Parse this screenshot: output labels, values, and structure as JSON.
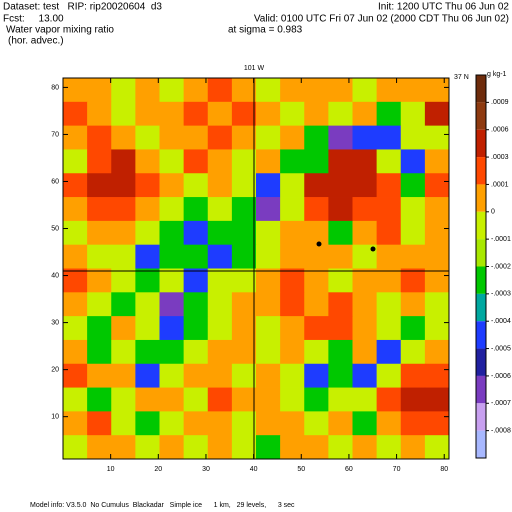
{
  "chart_data": {
    "type": "heatmap",
    "dataset": "Dataset: test   RIP: rip20020604  d3",
    "init": "Init: 1200 UTC Thu 06 Jun 02",
    "fcst": "Fcst:     13.00",
    "valid": "Valid: 0100 UTC Fri 07 Jun 02 (2000 CDT Thu 06 Jun 02)",
    "title": "Water vapor mixing ratio",
    "level": "at sigma = 0.983",
    "subtitle": "(hor. advec.)",
    "x_annotation": "101 W",
    "y_annotation": "37 N",
    "colorbar_unit": "g kg-1",
    "footer": "Model info: V3.5.0  No Cumulus  Blackadar   Simple ice      1 km,   29 levels,      3 sec",
    "xlim": [
      0,
      81
    ],
    "ylim": [
      1,
      82
    ],
    "xticks": [
      10,
      20,
      30,
      40,
      50,
      60,
      70,
      80
    ],
    "yticks": [
      10,
      20,
      30,
      40,
      50,
      60,
      70,
      80
    ],
    "levels": [
      {
        "value": 0.0009,
        "label": ".0009"
      },
      {
        "value": 0.0006,
        "label": ".0006"
      },
      {
        "value": 0.0003,
        "label": ".0003"
      },
      {
        "value": 0.0001,
        "label": ".0001"
      },
      0,
      {
        "value": -0.0001,
        "label": "-.0001"
      },
      {
        "value": -0.0002,
        "label": "-.0002"
      },
      {
        "value": -0.0003,
        "label": "-.0003"
      },
      {
        "value": -0.0004,
        "label": "-.0004"
      },
      {
        "value": -0.0005,
        "label": "-.0005"
      },
      {
        "value": -0.0006,
        "label": "-.0006"
      },
      {
        "value": -0.0007,
        "label": "-.0007"
      },
      {
        "value": -0.0008,
        "label": "-.0008"
      }
    ],
    "colors": [
      "#6e2c0c",
      "#8e3a10",
      "#c02000",
      "#ff4800",
      "#ffa000",
      "#c8f000",
      "#a8e800",
      "#00c800",
      "#00a8a0",
      "#1e3cff",
      "#2020a0",
      "#7a3cc0",
      "#c8a0f0",
      "#a8b8ff"
    ],
    "z": [
      [
        5e-05,
        5e-05,
        -5e-05,
        5e-05,
        -5e-05,
        5e-05,
        0.0002,
        5e-05,
        -5e-05,
        5e-05,
        5e-05,
        5e-05,
        -5e-05,
        5e-05,
        5e-05,
        5e-05
      ],
      [
        0.0002,
        5e-05,
        -5e-05,
        5e-05,
        5e-05,
        0.0002,
        5e-05,
        0.0002,
        5e-05,
        -5e-05,
        5e-05,
        -5e-05,
        5e-05,
        -0.00025,
        -5e-05,
        0.0004
      ],
      [
        5e-05,
        0.0002,
        5e-05,
        -5e-05,
        5e-05,
        5e-05,
        0.0002,
        5e-05,
        -5e-05,
        5e-05,
        -0.00025,
        -0.00065,
        -0.00045,
        -0.00045,
        -5e-05,
        -5e-05
      ],
      [
        -5e-05,
        0.0002,
        0.0004,
        5e-05,
        -5e-05,
        0.0002,
        5e-05,
        -5e-05,
        5e-05,
        -0.00025,
        -0.00025,
        0.0004,
        0.0004,
        -5e-05,
        -0.00045,
        5e-05
      ],
      [
        0.0002,
        0.0004,
        0.0004,
        0.0002,
        5e-05,
        -5e-05,
        5e-05,
        -5e-05,
        -0.00045,
        -5e-05,
        0.0004,
        0.0004,
        0.0004,
        0.0002,
        -0.00025,
        0.0002
      ],
      [
        5e-05,
        0.0002,
        0.0002,
        5e-05,
        -5e-05,
        -0.00025,
        -5e-05,
        -0.00025,
        -0.00065,
        -5e-05,
        0.0002,
        0.0004,
        0.0002,
        0.0002,
        -5e-05,
        5e-05
      ],
      [
        -5e-05,
        5e-05,
        5e-05,
        -5e-05,
        -0.00025,
        -0.00045,
        -0.00025,
        -0.00025,
        -5e-05,
        5e-05,
        5e-05,
        -0.00025,
        5e-05,
        0.0002,
        -5e-05,
        5e-05
      ],
      [
        5e-05,
        -5e-05,
        -5e-05,
        -0.00045,
        -0.00025,
        -0.00025,
        -0.00045,
        -0.00025,
        -5e-05,
        5e-05,
        5e-05,
        5e-05,
        -5e-05,
        5e-05,
        5e-05,
        5e-05
      ],
      [
        0.0002,
        5e-05,
        -5e-05,
        -0.00025,
        -5e-05,
        -0.00045,
        -5e-05,
        -5e-05,
        5e-05,
        0.0002,
        5e-05,
        -5e-05,
        5e-05,
        5e-05,
        0.0002,
        5e-05
      ],
      [
        5e-05,
        -5e-05,
        -0.00025,
        -5e-05,
        -0.00065,
        -0.00025,
        -5e-05,
        5e-05,
        5e-05,
        0.0002,
        5e-05,
        0.0002,
        5e-05,
        -5e-05,
        5e-05,
        -5e-05
      ],
      [
        -5e-05,
        -0.00025,
        5e-05,
        -5e-05,
        -0.00045,
        -0.00025,
        -5e-05,
        5e-05,
        -5e-05,
        5e-05,
        0.0002,
        0.0002,
        5e-05,
        -5e-05,
        -0.00025,
        -5e-05
      ],
      [
        5e-05,
        -0.00025,
        -5e-05,
        -0.00025,
        -0.00025,
        -5e-05,
        5e-05,
        5e-05,
        -5e-05,
        5e-05,
        -5e-05,
        -0.00025,
        5e-05,
        -0.00045,
        -5e-05,
        5e-05
      ],
      [
        0.0002,
        5e-05,
        5e-05,
        -0.00045,
        -5e-05,
        5e-05,
        5e-05,
        -5e-05,
        5e-05,
        -5e-05,
        -0.00045,
        -0.00025,
        -0.00045,
        -5e-05,
        0.0002,
        0.0002
      ],
      [
        -5e-05,
        -0.00025,
        -5e-05,
        5e-05,
        5e-05,
        -5e-05,
        0.0002,
        5e-05,
        5e-05,
        -5e-05,
        -0.00025,
        -5e-05,
        -5e-05,
        0.0002,
        0.0004,
        0.0004
      ],
      [
        5e-05,
        0.0002,
        -5e-05,
        -0.00025,
        -5e-05,
        5e-05,
        5e-05,
        -5e-05,
        5e-05,
        5e-05,
        -5e-05,
        5e-05,
        -0.00025,
        5e-05,
        0.0002,
        0.0002
      ],
      [
        -5e-05,
        5e-05,
        5e-05,
        -5e-05,
        5e-05,
        -5e-05,
        5e-05,
        -5e-05,
        -0.00025,
        5e-05,
        5e-05,
        -5e-05,
        5e-05,
        -5e-05,
        5e-05,
        -5e-05
      ]
    ]
  }
}
